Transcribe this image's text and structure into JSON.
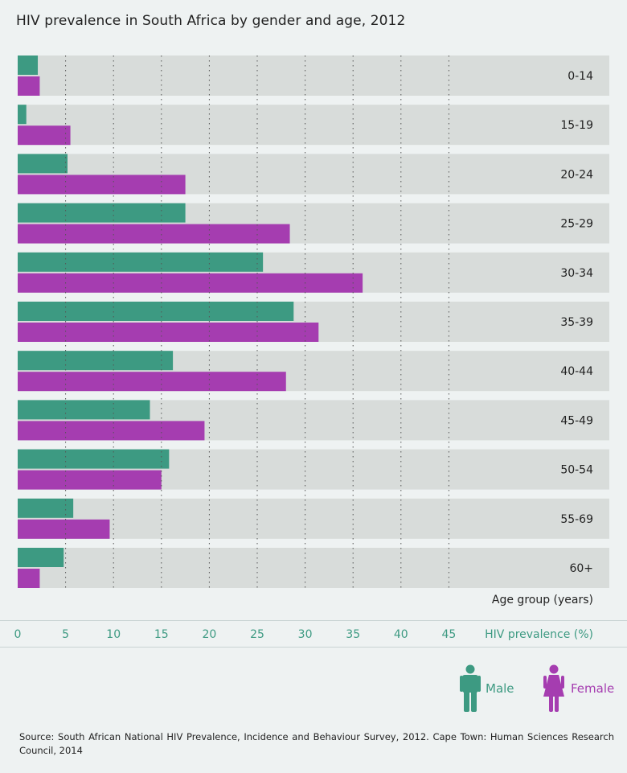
{
  "title": "HIV prevalence in South Africa by gender and age, 2012",
  "chart_data": {
    "type": "bar",
    "orientation": "horizontal",
    "title": "HIV prevalence in South Africa by gender and age, 2012",
    "categories": [
      "0-14",
      "15-19",
      "20-24",
      "25-29",
      "30-34",
      "35-39",
      "40-44",
      "45-49",
      "50-54",
      "55-69",
      "60+"
    ],
    "series": [
      {
        "name": "Male",
        "color": "#3d9a82",
        "values": [
          2.1,
          0.9,
          5.2,
          17.5,
          25.6,
          28.8,
          16.2,
          13.8,
          15.8,
          5.8,
          4.8
        ]
      },
      {
        "name": "Female",
        "color": "#a53db0",
        "values": [
          2.3,
          5.5,
          17.5,
          28.4,
          36.0,
          31.4,
          28.0,
          19.5,
          15.0,
          9.6,
          2.3
        ]
      }
    ],
    "xlabel": "HIV prevalence (%)",
    "ylabel": "Age group (years)",
    "xlim": [
      0,
      60
    ],
    "xticks": [
      0,
      5,
      10,
      15,
      20,
      25,
      30,
      35,
      40,
      45
    ],
    "grid": "vertical dotted",
    "legend_position": "bottom-right"
  },
  "legend": {
    "male": "Male",
    "female": "Female"
  },
  "source": "Source: South African National HIV Prevalence, Incidence and Behaviour Survey, 2012. Cape Town: Human Sciences Research Council, 2014",
  "colors": {
    "male": "#3d9a82",
    "female": "#a53db0",
    "track": "#d8dcda",
    "axis_text": "#3d9a82",
    "background": "#eef2f2"
  }
}
